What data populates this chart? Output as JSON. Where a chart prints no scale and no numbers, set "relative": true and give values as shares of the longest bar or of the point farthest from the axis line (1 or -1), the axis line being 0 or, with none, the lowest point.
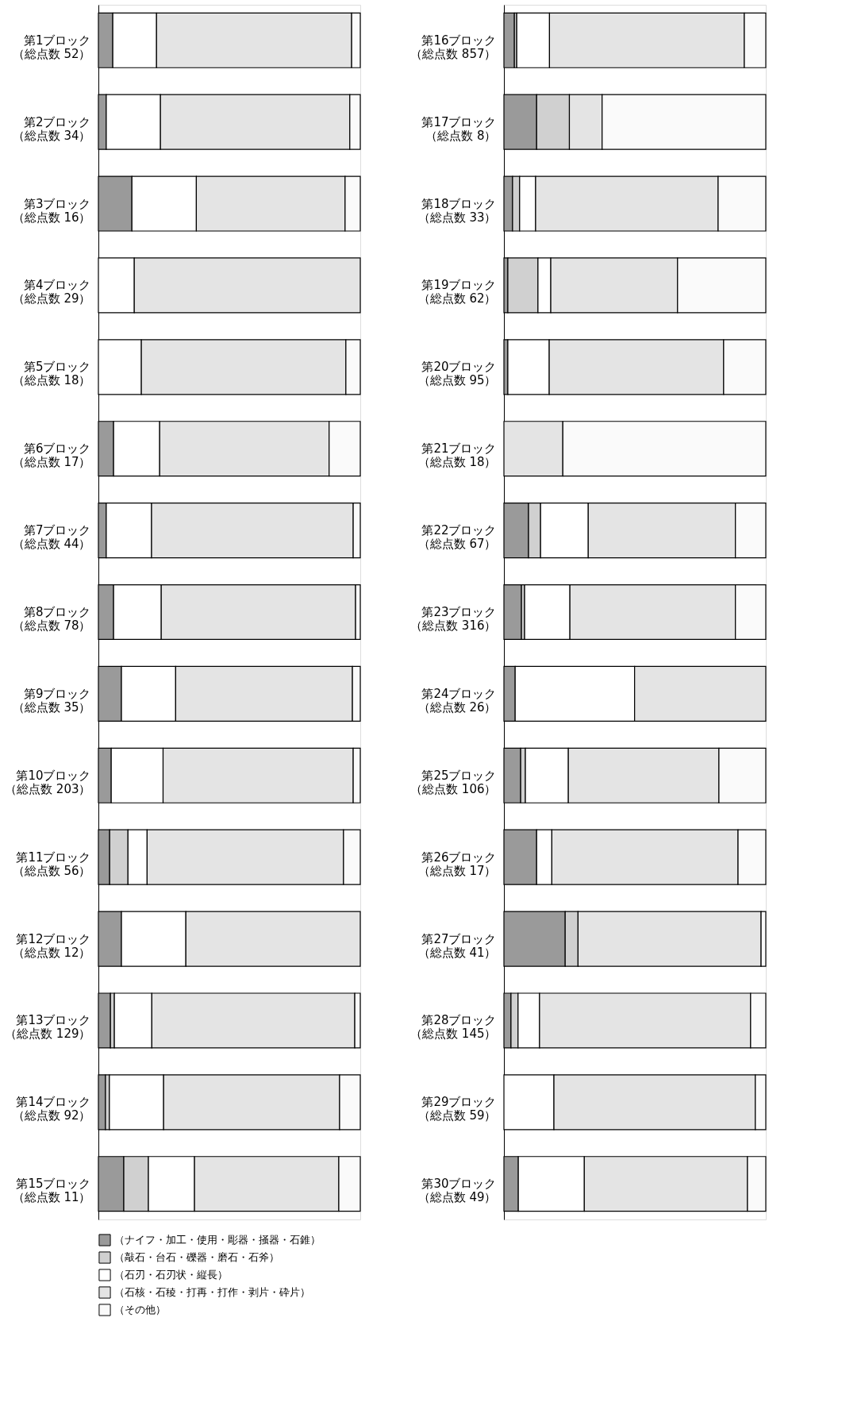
{
  "chart_data": [
    {
      "type": "bar",
      "orientation": "horizontal",
      "stacked": true,
      "relative": true,
      "legend": "bottom",
      "categories": [
        "第1ブロック（総点数 52）",
        "第2ブロック（総点数 34）",
        "第3ブロック（総点数 16）",
        "第4ブロック（総点数 29）",
        "第5ブロック（総点数 18）",
        "第6ブロック（総点数 17）",
        "第7ブロック（総点数 44）",
        "第8ブロック（総点数 78）",
        "第9ブロック（総点数 35）",
        "第10ブロック（総点数 203）",
        "第11ブロック（総点数 56）",
        "第12ブロック（総点数 12）",
        "第13ブロック（総点数 129）",
        "第14ブロック（総点数 92）",
        "第15ブロック（総点数 11）"
      ],
      "series": [
        {
          "name": "（ナイフ・加工・使用・彫器・掻器・石錐）",
          "color": "#9a9a9a",
          "values": [
            0.055,
            0.03,
            0.128,
            0,
            0,
            0.058,
            0.03,
            0.058,
            0.088,
            0.049,
            0.043,
            0.088,
            0.046,
            0.027,
            0.097
          ]
        },
        {
          "name": "（敲石・台石・礫器・磨石・石斧）",
          "color": "#d0d0d0",
          "values": [
            0,
            0,
            0,
            0,
            0,
            0,
            0,
            0,
            0,
            0,
            0.07,
            0,
            0.015,
            0.015,
            0.094
          ]
        },
        {
          "name": "（石刃・石刃状・縦長）",
          "color": "#ffffff",
          "values": [
            0.167,
            0.207,
            0.246,
            0.137,
            0.164,
            0.176,
            0.173,
            0.182,
            0.207,
            0.198,
            0.073,
            0.246,
            0.143,
            0.207,
            0.176
          ]
        },
        {
          "name": "（石核・石稜・打再・打作・剥片・砕片）",
          "color": "#e4e4e4",
          "values": [
            0.745,
            0.723,
            0.568,
            0.863,
            0.781,
            0.647,
            0.77,
            0.742,
            0.675,
            0.726,
            0.75,
            0.666,
            0.775,
            0.672,
            0.551
          ]
        },
        {
          "name": "（その他）",
          "color": "#fafafa",
          "values": [
            0.033,
            0.04,
            0.058,
            0,
            0.055,
            0.119,
            0.027,
            0.018,
            0.03,
            0.027,
            0.064,
            0,
            0.021,
            0.079,
            0.082
          ]
        }
      ]
    },
    {
      "type": "bar",
      "orientation": "horizontal",
      "stacked": true,
      "relative": true,
      "categories": [
        "第16ブロック（総点数 857）",
        "第17ブロック（総点数 8）",
        "第18ブロック（総点数 33）",
        "第19ブロック（総点数 62）",
        "第20ブロック（総点数 95）",
        "第21ブロック（総点数 18）",
        "第22ブロック（総点数 67）",
        "第23ブロック（総点数 316）",
        "第24ブロック（総点数 26）",
        "第25ブロック（総点数 106）",
        "第26ブロック（総点数 17）",
        "第27ブロック（総点数 41）",
        "第28ブロック（総点数 145）",
        "第29ブロック（総点数 59）",
        "第30ブロック（総点数 49）"
      ],
      "series": [
        {
          "color": "#9a9a9a",
          "values": [
            0.04,
            0.125,
            0.033,
            0.015,
            0.015,
            0,
            0.094,
            0.067,
            0.043,
            0.064,
            0.125,
            0.234,
            0.027,
            0,
            0.055
          ]
        },
        {
          "color": "#d0d0d0",
          "values": [
            0.009,
            0.125,
            0.027,
            0.115,
            0,
            0,
            0.046,
            0.012,
            0,
            0.018,
            0,
            0.049,
            0.027,
            0,
            0
          ]
        },
        {
          "color": "#ffffff",
          "values": [
            0.125,
            0,
            0.061,
            0.049,
            0.158,
            0,
            0.182,
            0.173,
            0.456,
            0.164,
            0.058,
            0,
            0.082,
            0.191,
            0.252
          ]
        },
        {
          "color": "#e4e4e4",
          "values": [
            0.744,
            0.125,
            0.697,
            0.484,
            0.666,
            0.225,
            0.562,
            0.632,
            0.501,
            0.575,
            0.711,
            0.699,
            0.806,
            0.769,
            0.623
          ]
        },
        {
          "color": "#fafafa",
          "values": [
            0.082,
            0.625,
            0.182,
            0.337,
            0.161,
            0.775,
            0.116,
            0.116,
            0,
            0.179,
            0.106,
            0.018,
            0.058,
            0.04,
            0.07
          ]
        }
      ]
    }
  ]
}
